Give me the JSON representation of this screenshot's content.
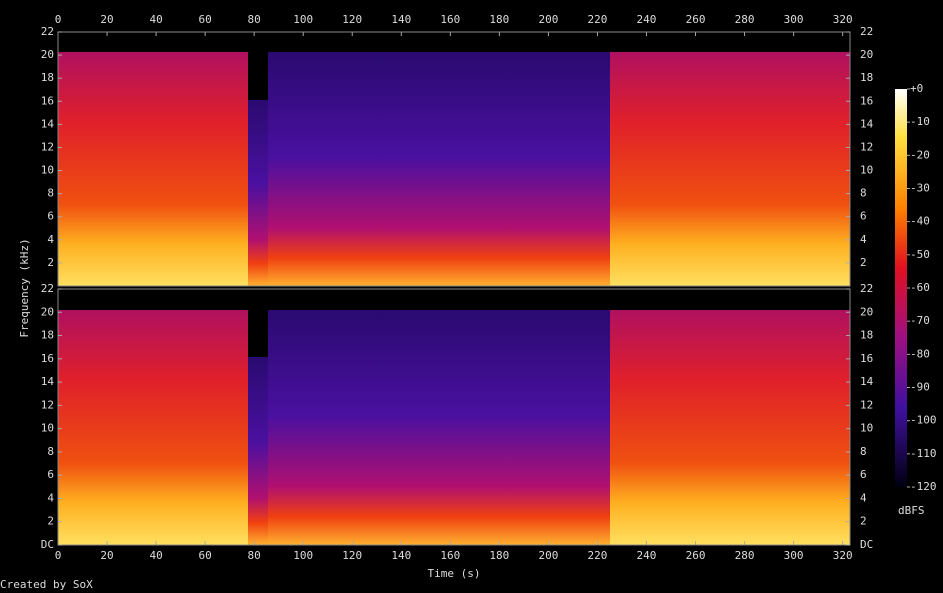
{
  "chart_data": {
    "type": "spectrogram",
    "x_label": "Time (s)",
    "y_label": "Frequency (kHz)",
    "credit": "Created by SoX",
    "xlim": [
      0,
      323
    ],
    "xticks": [
      0,
      20,
      40,
      60,
      80,
      100,
      120,
      140,
      160,
      180,
      200,
      220,
      240,
      260,
      280,
      300,
      320
    ],
    "panels": [
      {
        "ylim": [
          0,
          22
        ],
        "yticks": [
          2,
          4,
          6,
          8,
          10,
          12,
          14,
          16,
          18,
          20,
          22
        ]
      },
      {
        "ylim": [
          0,
          22
        ],
        "yticks": [
          {
            "value": 0,
            "label": "DC"
          },
          2,
          4,
          6,
          8,
          10,
          12,
          14,
          16,
          18,
          20,
          22
        ]
      }
    ],
    "colorbar": {
      "label": "dBFS",
      "lim": [
        -120,
        0
      ],
      "ticks": [
        {
          "value": 0,
          "label": "+0"
        },
        -10,
        -20,
        -30,
        -40,
        -50,
        -60,
        -70,
        -80,
        -90,
        -100,
        -110,
        -120
      ]
    }
  }
}
